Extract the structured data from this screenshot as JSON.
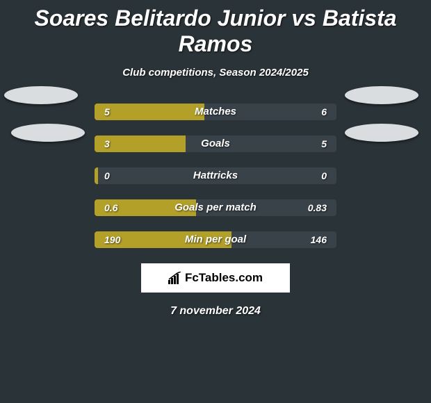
{
  "title": "Soares Belitardo Junior vs Batista Ramos",
  "subtitle": "Club competitions, Season 2024/2025",
  "date": "7 november 2024",
  "branding": "FcTables.com",
  "colors": {
    "background": "#2a3338",
    "left_bar": "#b2a029",
    "right_bar": "#394249",
    "ellipse": "#d9dde0",
    "text": "#ffffff"
  },
  "chart": {
    "track_width": 348,
    "rows": [
      {
        "metric": "Matches",
        "left_val": "5",
        "right_val": "6",
        "left_pct": 45.5,
        "right_pct": 54.5
      },
      {
        "metric": "Goals",
        "left_val": "3",
        "right_val": "5",
        "left_pct": 37.5,
        "right_pct": 62.5
      },
      {
        "metric": "Hattricks",
        "left_val": "0",
        "right_val": "0",
        "left_pct": 1.5,
        "right_pct": 98.5
      },
      {
        "metric": "Goals per match",
        "left_val": "0.6",
        "right_val": "0.83",
        "left_pct": 42.0,
        "right_pct": 58.0
      },
      {
        "metric": "Min per goal",
        "left_val": "190",
        "right_val": "146",
        "left_pct": 56.5,
        "right_pct": 43.5
      }
    ]
  }
}
